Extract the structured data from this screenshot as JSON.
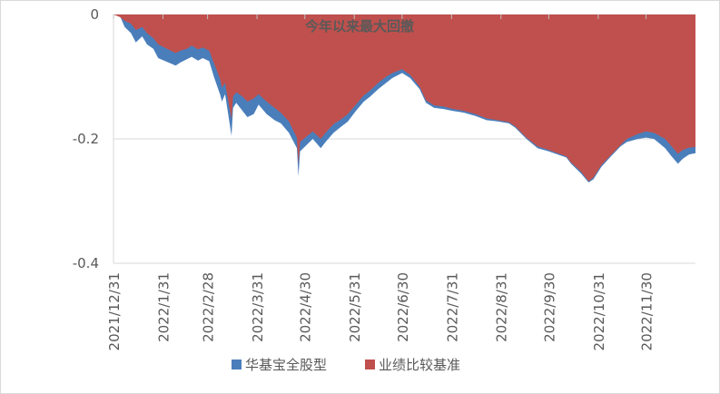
{
  "chart_data": {
    "type": "area",
    "title": "今年以来最大回撤",
    "xlabel": "",
    "ylabel": "",
    "ylim": [
      -0.4,
      0
    ],
    "yticks": [
      0,
      -0.2,
      -0.4
    ],
    "ytick_labels": [
      "0",
      "-0.2",
      "-0.4"
    ],
    "xlim": [
      "2021-12-31",
      "2022-12-31"
    ],
    "xtick_labels": [
      "2021/12/31",
      "2022/1/31",
      "2022/2/28",
      "2022/3/31",
      "2022/4/30",
      "2022/5/31",
      "2022/6/30",
      "2022/7/31",
      "2022/8/31",
      "2022/9/30",
      "2022/10/31",
      "2022/11/30"
    ],
    "xtick_dates": [
      "2021-12-31",
      "2022-01-31",
      "2022-02-28",
      "2022-03-31",
      "2022-04-30",
      "2022-05-31",
      "2022-06-30",
      "2022-07-31",
      "2022-08-31",
      "2022-09-30",
      "2022-10-31",
      "2022-11-30"
    ],
    "grid": true,
    "legend_position": "bottom",
    "series": [
      {
        "name": "华基宝全股型",
        "color": "#4a7ebb",
        "points": [
          [
            "2021-12-31",
            0
          ],
          [
            "2022-01-04",
            -0.002
          ],
          [
            "2022-01-07",
            -0.02
          ],
          [
            "2022-01-11",
            -0.03
          ],
          [
            "2022-01-14",
            -0.045
          ],
          [
            "2022-01-18",
            -0.035
          ],
          [
            "2022-01-21",
            -0.048
          ],
          [
            "2022-01-25",
            -0.055
          ],
          [
            "2022-01-28",
            -0.07
          ],
          [
            "2022-02-08",
            -0.082
          ],
          [
            "2022-02-11",
            -0.077
          ],
          [
            "2022-02-15",
            -0.072
          ],
          [
            "2022-02-18",
            -0.068
          ],
          [
            "2022-02-22",
            -0.074
          ],
          [
            "2022-02-25",
            -0.07
          ],
          [
            "2022-03-01",
            -0.075
          ],
          [
            "2022-03-04",
            -0.1
          ],
          [
            "2022-03-08",
            -0.13
          ],
          [
            "2022-03-09",
            -0.14
          ],
          [
            "2022-03-11",
            -0.128
          ],
          [
            "2022-03-15",
            -0.195
          ],
          [
            "2022-03-16",
            -0.15
          ],
          [
            "2022-03-18",
            -0.142
          ],
          [
            "2022-03-22",
            -0.155
          ],
          [
            "2022-03-25",
            -0.165
          ],
          [
            "2022-03-29",
            -0.16
          ],
          [
            "2022-04-01",
            -0.145
          ],
          [
            "2022-04-06",
            -0.16
          ],
          [
            "2022-04-11",
            -0.17
          ],
          [
            "2022-04-15",
            -0.175
          ],
          [
            "2022-04-20",
            -0.19
          ],
          [
            "2022-04-25",
            -0.215
          ],
          [
            "2022-04-26",
            -0.26
          ],
          [
            "2022-04-27",
            -0.22
          ],
          [
            "2022-05-05",
            -0.2
          ],
          [
            "2022-05-10",
            -0.215
          ],
          [
            "2022-05-13",
            -0.205
          ],
          [
            "2022-05-18",
            -0.19
          ],
          [
            "2022-05-23",
            -0.18
          ],
          [
            "2022-05-27",
            -0.172
          ],
          [
            "2022-06-01",
            -0.155
          ],
          [
            "2022-06-06",
            -0.14
          ],
          [
            "2022-06-10",
            -0.132
          ],
          [
            "2022-06-15",
            -0.12
          ],
          [
            "2022-06-20",
            -0.11
          ],
          [
            "2022-06-24",
            -0.102
          ],
          [
            "2022-06-30",
            -0.094
          ],
          [
            "2022-07-05",
            -0.102
          ],
          [
            "2022-07-11",
            -0.12
          ],
          [
            "2022-07-15",
            -0.142
          ],
          [
            "2022-07-20",
            -0.15
          ],
          [
            "2022-07-26",
            -0.152
          ],
          [
            "2022-08-01",
            -0.155
          ],
          [
            "2022-08-08",
            -0.158
          ],
          [
            "2022-08-15",
            -0.163
          ],
          [
            "2022-08-22",
            -0.17
          ],
          [
            "2022-08-29",
            -0.172
          ],
          [
            "2022-09-05",
            -0.175
          ],
          [
            "2022-09-09",
            -0.182
          ],
          [
            "2022-09-16",
            -0.2
          ],
          [
            "2022-09-23",
            -0.215
          ],
          [
            "2022-09-30",
            -0.22
          ],
          [
            "2022-10-11",
            -0.23
          ],
          [
            "2022-10-14",
            -0.24
          ],
          [
            "2022-10-20",
            -0.255
          ],
          [
            "2022-10-25",
            -0.27
          ],
          [
            "2022-10-28",
            -0.265
          ],
          [
            "2022-11-02",
            -0.245
          ],
          [
            "2022-11-08",
            -0.228
          ],
          [
            "2022-11-14",
            -0.212
          ],
          [
            "2022-11-18",
            -0.205
          ],
          [
            "2022-11-25",
            -0.2
          ],
          [
            "2022-11-30",
            -0.198
          ],
          [
            "2022-12-05",
            -0.2
          ],
          [
            "2022-12-12",
            -0.215
          ],
          [
            "2022-12-16",
            -0.228
          ],
          [
            "2022-12-20",
            -0.24
          ],
          [
            "2022-12-23",
            -0.232
          ],
          [
            "2022-12-27",
            -0.225
          ],
          [
            "2022-12-31",
            -0.223
          ]
        ]
      },
      {
        "name": "业绩比较基准",
        "color": "#c0504d",
        "points": [
          [
            "2021-12-31",
            0
          ],
          [
            "2022-01-04",
            -0.004
          ],
          [
            "2022-01-07",
            -0.01
          ],
          [
            "2022-01-11",
            -0.015
          ],
          [
            "2022-01-14",
            -0.025
          ],
          [
            "2022-01-18",
            -0.02
          ],
          [
            "2022-01-21",
            -0.03
          ],
          [
            "2022-01-25",
            -0.038
          ],
          [
            "2022-01-28",
            -0.048
          ],
          [
            "2022-02-08",
            -0.062
          ],
          [
            "2022-02-11",
            -0.058
          ],
          [
            "2022-02-15",
            -0.055
          ],
          [
            "2022-02-18",
            -0.05
          ],
          [
            "2022-02-22",
            -0.056
          ],
          [
            "2022-02-25",
            -0.053
          ],
          [
            "2022-03-01",
            -0.058
          ],
          [
            "2022-03-04",
            -0.078
          ],
          [
            "2022-03-08",
            -0.105
          ],
          [
            "2022-03-09",
            -0.118
          ],
          [
            "2022-03-11",
            -0.11
          ],
          [
            "2022-03-15",
            -0.168
          ],
          [
            "2022-03-16",
            -0.132
          ],
          [
            "2022-03-18",
            -0.125
          ],
          [
            "2022-03-22",
            -0.132
          ],
          [
            "2022-03-25",
            -0.14
          ],
          [
            "2022-03-29",
            -0.135
          ],
          [
            "2022-04-01",
            -0.128
          ],
          [
            "2022-04-06",
            -0.14
          ],
          [
            "2022-04-11",
            -0.15
          ],
          [
            "2022-04-15",
            -0.158
          ],
          [
            "2022-04-20",
            -0.172
          ],
          [
            "2022-04-25",
            -0.198
          ],
          [
            "2022-04-26",
            -0.24
          ],
          [
            "2022-04-27",
            -0.205
          ],
          [
            "2022-05-05",
            -0.188
          ],
          [
            "2022-05-10",
            -0.2
          ],
          [
            "2022-05-13",
            -0.19
          ],
          [
            "2022-05-18",
            -0.176
          ],
          [
            "2022-05-23",
            -0.168
          ],
          [
            "2022-05-27",
            -0.16
          ],
          [
            "2022-06-01",
            -0.145
          ],
          [
            "2022-06-06",
            -0.13
          ],
          [
            "2022-06-10",
            -0.122
          ],
          [
            "2022-06-15",
            -0.11
          ],
          [
            "2022-06-20",
            -0.1
          ],
          [
            "2022-06-24",
            -0.094
          ],
          [
            "2022-06-30",
            -0.088
          ],
          [
            "2022-07-05",
            -0.097
          ],
          [
            "2022-07-11",
            -0.116
          ],
          [
            "2022-07-15",
            -0.138
          ],
          [
            "2022-07-20",
            -0.146
          ],
          [
            "2022-07-26",
            -0.148
          ],
          [
            "2022-08-01",
            -0.152
          ],
          [
            "2022-08-08",
            -0.155
          ],
          [
            "2022-08-15",
            -0.16
          ],
          [
            "2022-08-22",
            -0.167
          ],
          [
            "2022-08-29",
            -0.17
          ],
          [
            "2022-09-05",
            -0.173
          ],
          [
            "2022-09-09",
            -0.18
          ],
          [
            "2022-09-16",
            -0.198
          ],
          [
            "2022-09-23",
            -0.212
          ],
          [
            "2022-09-30",
            -0.218
          ],
          [
            "2022-10-11",
            -0.228
          ],
          [
            "2022-10-14",
            -0.238
          ],
          [
            "2022-10-20",
            -0.252
          ],
          [
            "2022-10-25",
            -0.268
          ],
          [
            "2022-10-28",
            -0.262
          ],
          [
            "2022-11-02",
            -0.242
          ],
          [
            "2022-11-08",
            -0.226
          ],
          [
            "2022-11-14",
            -0.21
          ],
          [
            "2022-11-18",
            -0.2
          ],
          [
            "2022-11-25",
            -0.192
          ],
          [
            "2022-11-30",
            -0.188
          ],
          [
            "2022-12-05",
            -0.19
          ],
          [
            "2022-12-12",
            -0.2
          ],
          [
            "2022-12-16",
            -0.212
          ],
          [
            "2022-12-20",
            -0.224
          ],
          [
            "2022-12-23",
            -0.218
          ],
          [
            "2022-12-27",
            -0.214
          ],
          [
            "2022-12-31",
            -0.213
          ]
        ]
      }
    ]
  }
}
